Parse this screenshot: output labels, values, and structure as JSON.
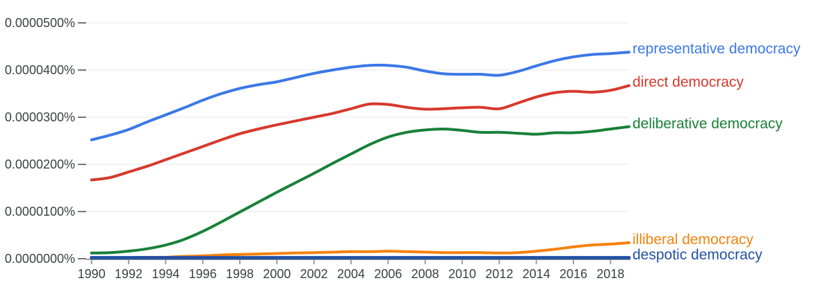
{
  "chart_data": {
    "type": "line",
    "source_app": "Google Books Ngram Viewer style frequency chart",
    "title": "",
    "xlabel": "",
    "ylabel": "",
    "xlim": [
      1990,
      2019
    ],
    "ylim": [
      0,
      5e-05
    ],
    "grid": "horizontal-only",
    "legend_position": "right-end-of-lines",
    "x": [
      1990,
      1991,
      1992,
      1993,
      1994,
      1995,
      1996,
      1997,
      1998,
      1999,
      2000,
      2001,
      2002,
      2003,
      2004,
      2005,
      2006,
      2007,
      2008,
      2009,
      2010,
      2011,
      2012,
      2013,
      2014,
      2015,
      2016,
      2017,
      2018,
      2019
    ],
    "x_tick_labels": [
      "1990",
      "1992",
      "1994",
      "1996",
      "1998",
      "2000",
      "2002",
      "2004",
      "2006",
      "2008",
      "2010",
      "2012",
      "2014",
      "2016",
      "2018"
    ],
    "y_tick_labels": [
      "0.0000000%",
      "0.0000100%",
      "0.0000200%",
      "0.0000300%",
      "0.0000400%",
      "0.0000500%"
    ],
    "series": [
      {
        "name": "representative democracy",
        "color": "#3b78e8",
        "values": [
          2.52e-05,
          2.62e-05,
          2.74e-05,
          2.9e-05,
          3.05e-05,
          3.2e-05,
          3.36e-05,
          3.5e-05,
          3.61e-05,
          3.69e-05,
          3.75e-05,
          3.84e-05,
          3.93e-05,
          4e-05,
          4.06e-05,
          4.1e-05,
          4.1e-05,
          4.06e-05,
          3.98e-05,
          3.92e-05,
          3.91e-05,
          3.91e-05,
          3.89e-05,
          3.97e-05,
          4.09e-05,
          4.2e-05,
          4.28e-05,
          4.33e-05,
          4.35e-05,
          4.38e-05
        ]
      },
      {
        "name": "direct democracy",
        "color": "#d6392c",
        "values": [
          1.67e-05,
          1.72e-05,
          1.84e-05,
          1.96e-05,
          2.1e-05,
          2.24e-05,
          2.38e-05,
          2.52e-05,
          2.65e-05,
          2.75e-05,
          2.84e-05,
          2.92e-05,
          3e-05,
          3.08e-05,
          3.18e-05,
          3.28e-05,
          3.27e-05,
          3.21e-05,
          3.17e-05,
          3.18e-05,
          3.2e-05,
          3.21e-05,
          3.18e-05,
          3.3e-05,
          3.43e-05,
          3.52e-05,
          3.55e-05,
          3.53e-05,
          3.57e-05,
          3.67e-05
        ]
      },
      {
        "name": "deliberative democracy",
        "color": "#188038",
        "values": [
          1.2e-06,
          1.3e-06,
          1.6e-06,
          2.1e-06,
          2.9e-06,
          4.1e-06,
          5.8e-06,
          7.8e-06,
          9.9e-06,
          1.2e-05,
          1.41e-05,
          1.61e-05,
          1.81e-05,
          2.02e-05,
          2.22e-05,
          2.42e-05,
          2.58e-05,
          2.68e-05,
          2.73e-05,
          2.75e-05,
          2.72e-05,
          2.68e-05,
          2.68e-05,
          2.66e-05,
          2.64e-05,
          2.67e-05,
          2.67e-05,
          2.7e-05,
          2.75e-05,
          2.8e-05
        ]
      },
      {
        "name": "illiberal democracy",
        "color": "#f5820d",
        "values": [
          2e-07,
          2e-07,
          2e-07,
          3e-07,
          3e-07,
          5e-07,
          6e-07,
          8e-07,
          9e-07,
          1e-06,
          1.1e-06,
          1.2e-06,
          1.3e-06,
          1.4e-06,
          1.5e-06,
          1.5e-06,
          1.6e-06,
          1.5e-06,
          1.4e-06,
          1.3e-06,
          1.3e-06,
          1.3e-06,
          1.2e-06,
          1.3e-06,
          1.6e-06,
          2e-06,
          2.5e-06,
          2.9e-06,
          3.1e-06,
          3.4e-06
        ]
      },
      {
        "name": "despotic democracy",
        "color": "#2351a5",
        "values": [
          2e-07,
          2e-07,
          2e-07,
          2e-07,
          2e-07,
          2e-07,
          2e-07,
          2e-07,
          2e-07,
          2e-07,
          2e-07,
          2e-07,
          2e-07,
          2e-07,
          2e-07,
          2e-07,
          2e-07,
          2e-07,
          2e-07,
          2e-07,
          2e-07,
          2e-07,
          2e-07,
          2e-07,
          2e-07,
          2e-07,
          2e-07,
          2e-07,
          2e-07,
          2e-07
        ]
      }
    ],
    "style_colors": {
      "gridline": "#ececec",
      "axis_line": "#9e9e9e",
      "tick_dash": "#757575",
      "tick_label_text": "#3c4043",
      "background": "#ffffff"
    }
  }
}
